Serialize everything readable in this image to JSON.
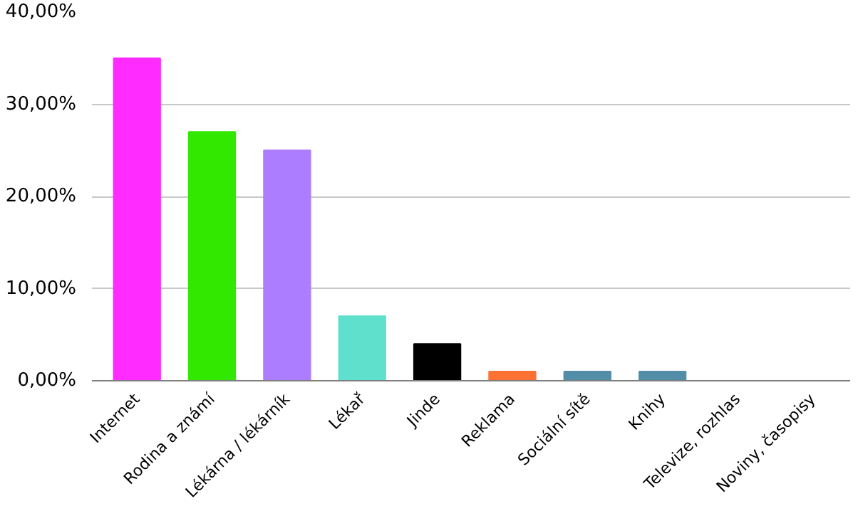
{
  "chart_data": {
    "type": "bar",
    "categories": [
      "Internet",
      "Rodina a známí",
      "Lékárna / lékárník",
      "Lékař",
      "Jinde",
      "Reklama",
      "Sociální sítě",
      "Knihy",
      "Televize, rozhlas",
      "Noviny, časopisy"
    ],
    "values": [
      35,
      27,
      25,
      7,
      4,
      1,
      1,
      1,
      0,
      0
    ],
    "colors": [
      "#ff2bff",
      "#33e800",
      "#ad7dff",
      "#5ee0cc",
      "#000000",
      "#ff7033",
      "#538ea8",
      "#538ea8",
      "#538ea8",
      "#538ea8"
    ],
    "ylim": [
      0,
      40
    ],
    "yticks": [
      {
        "value": 0,
        "label": "0,00%"
      },
      {
        "value": 10,
        "label": "10,00%"
      },
      {
        "value": 20,
        "label": "20,00%"
      },
      {
        "value": 30,
        "label": "30,00%"
      },
      {
        "value": 40,
        "label": "40,00%"
      }
    ],
    "grid": "y"
  }
}
